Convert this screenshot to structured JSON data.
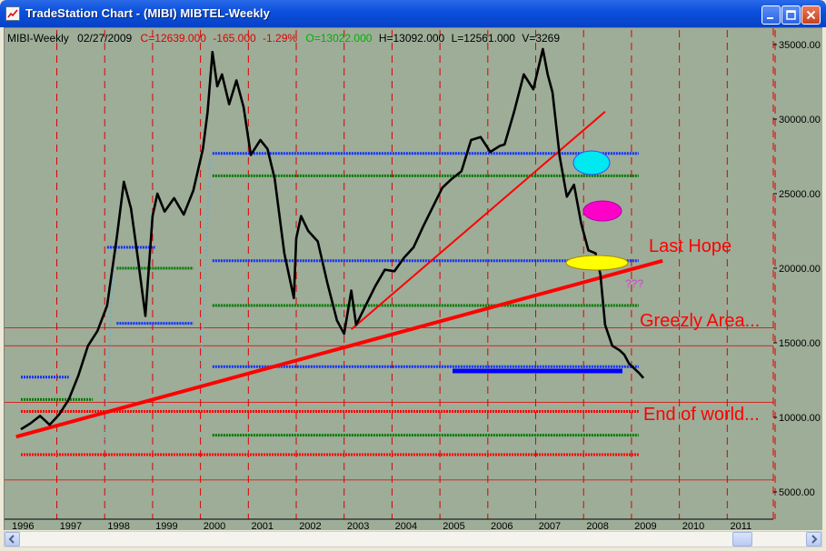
{
  "window": {
    "title": "TradeStation Chart - (MIBI)  MIBTEL-Weekly",
    "buttons": [
      "minimize",
      "maximize",
      "close"
    ]
  },
  "info": {
    "symbol": "MIBI-Weekly",
    "date": "02/27/2009",
    "close": "C=12639.000",
    "change": "-165.000",
    "change_pct": "-1.29%",
    "open": "O=13022.000",
    "high": "H=13092.000",
    "low": "L=12561.000",
    "volume": "V=3269"
  },
  "annotations": {
    "last_hope": "Last Hope",
    "question": "???",
    "greezly": "Greezly Area...",
    "end_world": "End of world..."
  },
  "colors": {
    "background": "#9dad98",
    "price": "#000000",
    "trendline": "#ff0000",
    "blue_levels": "#0000ff",
    "green_levels": "#007a00",
    "red_levels": "#ff0000",
    "info_red": "#e00000",
    "info_green": "#00a000",
    "info_black": "#000000"
  },
  "chart_data": {
    "type": "line",
    "x_ticks": [
      "1996",
      "1997",
      "1998",
      "1999",
      "2000",
      "2001",
      "2002",
      "2003",
      "2004",
      "2005",
      "2006",
      "2007",
      "2008",
      "2009",
      "2010",
      "2011"
    ],
    "y_ticks": [
      "35000.00",
      "30000.00",
      "25000.00",
      "20000.00",
      "15000.00",
      "10000.00",
      "5000.00"
    ],
    "ylim": [
      2000,
      36500
    ],
    "xlim": [
      1995.9,
      2012.0
    ],
    "series": [
      {
        "x": [
          1996.0,
          1996.2,
          1996.4,
          1996.6,
          1996.8,
          1997.0,
          1997.2,
          1997.4,
          1997.6,
          1997.8,
          1998.0,
          1998.15,
          1998.3,
          1998.45,
          1998.6,
          1998.75,
          1998.85,
          1999.0,
          1999.2,
          1999.4,
          1999.6,
          1999.8,
          1999.9,
          2000.0,
          2000.1,
          2000.2,
          2000.35,
          2000.5,
          2000.65,
          2000.8,
          2001.0,
          2001.15,
          2001.3,
          2001.5,
          2001.7,
          2001.75,
          2001.85,
          2002.0,
          2002.2,
          2002.4,
          2002.6,
          2002.75,
          2002.9,
          2003.0,
          2003.2,
          2003.4,
          2003.6,
          2003.8,
          2004.0,
          2004.2,
          2004.4,
          2004.6,
          2004.8,
          2005.0,
          2005.2,
          2005.4,
          2005.6,
          2005.8,
          2006.0,
          2006.1,
          2006.3,
          2006.5,
          2006.7,
          2006.9,
          2007.0,
          2007.1,
          2007.25,
          2007.4,
          2007.55,
          2007.7,
          2007.85,
          2008.0,
          2008.1,
          2008.2,
          2008.35,
          2008.5,
          2008.6,
          2008.7,
          2008.8,
          2008.9,
          2009.0
        ],
        "y": [
          9200,
          9600,
          10100,
          9500,
          10200,
          11200,
          12800,
          14800,
          15800,
          17500,
          22000,
          25800,
          24000,
          20500,
          16800,
          23500,
          25000,
          23800,
          24700,
          23600,
          25200,
          28000,
          30500,
          34500,
          32200,
          33000,
          31000,
          32600,
          30800,
          27600,
          28600,
          28000,
          26000,
          21000,
          18000,
          22000,
          23500,
          22500,
          21800,
          19000,
          16500,
          15600,
          18500,
          16200,
          17500,
          18800,
          19900,
          19800,
          20700,
          21400,
          22800,
          24100,
          25400,
          26000,
          26500,
          28600,
          28800,
          27800,
          28200,
          28300,
          30500,
          33000,
          32000,
          34700,
          33000,
          31800,
          27500,
          24800,
          25600,
          23000,
          21200,
          21000,
          19600,
          16200,
          14800,
          14500,
          14200,
          13600,
          13300,
          13000,
          12639
        ]
      }
    ],
    "blue_levels": [
      {
        "x0": 1996.0,
        "x1": 1997.0,
        "y": 12700
      },
      {
        "x0": 1997.8,
        "x1": 1998.8,
        "y": 21400
      },
      {
        "x0": 1998.0,
        "x1": 1999.6,
        "y": 16300
      },
      {
        "x0": 2000.0,
        "x1": 2008.9,
        "y": 27700
      },
      {
        "x0": 2000.0,
        "x1": 2008.9,
        "y": 20500
      },
      {
        "x0": 2000.0,
        "x1": 2008.9,
        "y": 13400
      }
    ],
    "green_levels": [
      {
        "x0": 1996.0,
        "x1": 1997.5,
        "y": 11200
      },
      {
        "x0": 1998.0,
        "x1": 1999.6,
        "y": 20000
      },
      {
        "x0": 2000.0,
        "x1": 2008.9,
        "y": 26200
      },
      {
        "x0": 2000.0,
        "x1": 2008.9,
        "y": 17500
      },
      {
        "x0": 2000.0,
        "x1": 2008.9,
        "y": 8800
      }
    ],
    "red_levels": [
      {
        "x0": 1996.0,
        "x1": 2008.9,
        "y": 10400
      },
      {
        "x0": 1996.0,
        "x1": 2008.9,
        "y": 7500
      }
    ],
    "trendlines": [
      {
        "x0": 1995.9,
        "y0": 8700,
        "x1": 2009.4,
        "y1": 20500
      },
      {
        "x0": 2002.9,
        "y0": 15900,
        "x1": 2008.2,
        "y1": 30500
      }
    ]
  }
}
